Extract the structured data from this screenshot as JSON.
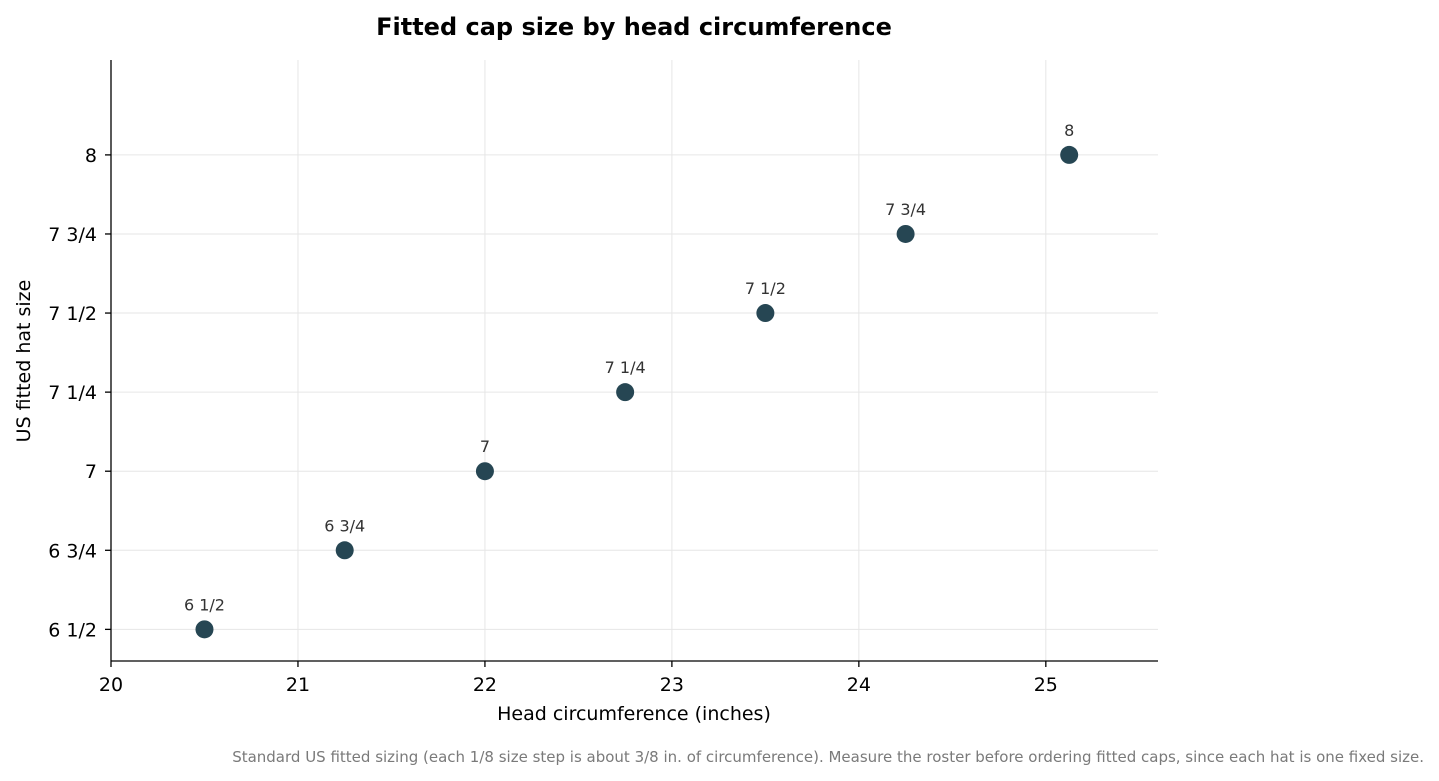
{
  "chart_data": {
    "type": "scatter",
    "title": "Fitted cap size by head circumference",
    "xlabel": "Head circumference (inches)",
    "ylabel": "US fitted hat size",
    "xlim": [
      20,
      25.6
    ],
    "ylim": [
      6.4,
      8.3
    ],
    "x_ticks": [
      20,
      21,
      22,
      23,
      24,
      25
    ],
    "y_ticks": [
      {
        "value": 6.5,
        "label": "6 1/2"
      },
      {
        "value": 6.75,
        "label": "6 3/4"
      },
      {
        "value": 7.0,
        "label": "7"
      },
      {
        "value": 7.25,
        "label": "7 1/4"
      },
      {
        "value": 7.5,
        "label": "7 1/2"
      },
      {
        "value": 7.75,
        "label": "7 3/4"
      },
      {
        "value": 8.0,
        "label": "8"
      }
    ],
    "points": [
      {
        "x": 20.5,
        "y": 6.5,
        "label": "6 1/2"
      },
      {
        "x": 21.25,
        "y": 6.75,
        "label": "6 3/4"
      },
      {
        "x": 22.0,
        "y": 7.0,
        "label": "7"
      },
      {
        "x": 22.75,
        "y": 7.25,
        "label": "7 1/4"
      },
      {
        "x": 23.5,
        "y": 7.5,
        "label": "7 1/2"
      },
      {
        "x": 24.25,
        "y": 7.75,
        "label": "7 3/4"
      },
      {
        "x": 25.125,
        "y": 8.0,
        "label": "8"
      }
    ],
    "grid": true,
    "marker_color": "#264653",
    "footnote": "Standard US fitted sizing (each 1/8 size step is about 3/8 in. of circumference). Measure the roster before ordering fitted caps, since each hat is one fixed size."
  }
}
